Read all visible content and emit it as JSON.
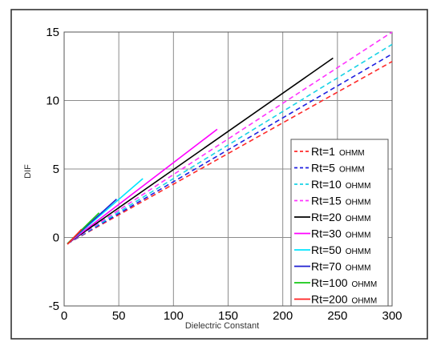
{
  "chart_data": {
    "type": "line",
    "xlabel": "Dielectric Constant",
    "ylabel": "DIF",
    "xlim": [
      0,
      300
    ],
    "ylim": [
      -5,
      15
    ],
    "x_ticks": [
      "0",
      "50",
      "100",
      "150",
      "200",
      "250",
      "300"
    ],
    "y_ticks": [
      "-5",
      "0",
      "5",
      "10",
      "15"
    ],
    "grid": true,
    "legend_position": "bottom-right",
    "series": [
      {
        "name": "Rt=1",
        "unit": "OHMM",
        "color": "#ff2a2a",
        "dash": "dashed",
        "x": [
          3,
          300
        ],
        "y": [
          -0.45,
          12.85
        ]
      },
      {
        "name": "Rt=5",
        "unit": "OHMM",
        "color": "#1f1fe0",
        "dash": "dashed",
        "x": [
          3,
          300
        ],
        "y": [
          -0.45,
          13.4
        ]
      },
      {
        "name": "Rt=10",
        "unit": "OHMM",
        "color": "#19d3e6",
        "dash": "dashed",
        "x": [
          3,
          300
        ],
        "y": [
          -0.45,
          14.1
        ]
      },
      {
        "name": "Rt=15",
        "unit": "OHMM",
        "color": "#ff33ff",
        "dash": "dashed",
        "x": [
          3,
          300
        ],
        "y": [
          -0.45,
          15.0
        ]
      },
      {
        "name": "Rt=20",
        "unit": "OHMM",
        "color": "#000000",
        "dash": "solid",
        "x": [
          3,
          246
        ],
        "y": [
          -0.45,
          13.1
        ]
      },
      {
        "name": "Rt=30",
        "unit": "OHMM",
        "color": "#ff00ff",
        "dash": "solid",
        "x": [
          3,
          140
        ],
        "y": [
          -0.45,
          7.9
        ]
      },
      {
        "name": "Rt=50",
        "unit": "OHMM",
        "color": "#00e5ff",
        "dash": "solid",
        "x": [
          3,
          72
        ],
        "y": [
          -0.45,
          4.3
        ]
      },
      {
        "name": "Rt=70",
        "unit": "OHMM",
        "color": "#1f1fd0",
        "dash": "solid",
        "x": [
          3,
          48
        ],
        "y": [
          -0.45,
          2.8
        ]
      },
      {
        "name": "Rt=100",
        "unit": "OHMM",
        "color": "#14c814",
        "dash": "solid",
        "x": [
          3,
          32
        ],
        "y": [
          -0.45,
          1.8
        ]
      },
      {
        "name": "Rt=200",
        "unit": "OHMM",
        "color": "#ff2020",
        "dash": "solid",
        "x": [
          3,
          16
        ],
        "y": [
          -0.5,
          0.6
        ]
      }
    ]
  }
}
